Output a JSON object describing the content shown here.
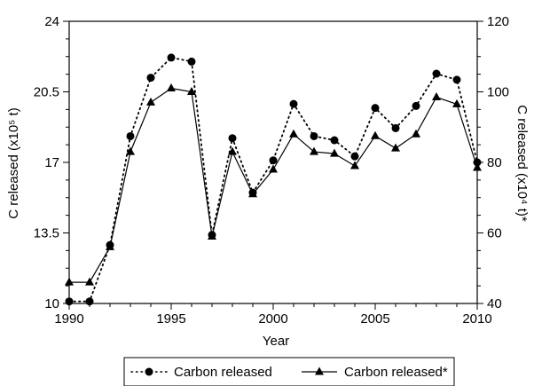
{
  "chart_data": {
    "type": "line",
    "xlabel": "Year",
    "ylabel_left": "C released (x10⁵ t)",
    "ylabel_right": "C released (x10⁴ t)*",
    "xlim": [
      1990,
      2010
    ],
    "ylim_left": [
      10,
      24
    ],
    "ylim_right": [
      40,
      120
    ],
    "x_ticks": [
      "1990",
      "1995",
      "2000",
      "2005",
      "2010"
    ],
    "x_tick_values": [
      1990,
      1995,
      2000,
      2005,
      2010
    ],
    "y_left_ticks": [
      "10",
      "13.5",
      "17",
      "20.5",
      "24"
    ],
    "y_left_tick_values": [
      10,
      13.5,
      17,
      20.5,
      24
    ],
    "y_right_ticks": [
      "40",
      "60",
      "80",
      "100",
      "120"
    ],
    "y_right_tick_values": [
      40,
      60,
      80,
      100,
      120
    ],
    "grid": false,
    "legend_position": "bottom",
    "colors": {
      "line": "#000000",
      "background": "#ffffff"
    },
    "x": [
      1990,
      1991,
      1992,
      1993,
      1994,
      1995,
      1996,
      1997,
      1998,
      1999,
      2000,
      2001,
      2002,
      2003,
      2004,
      2005,
      2006,
      2007,
      2008,
      2009,
      2010
    ],
    "series": [
      {
        "name": "Carbon released",
        "axis": "left",
        "marker": "circle",
        "line_style": "dotted",
        "values": [
          10.1,
          10.1,
          12.9,
          18.3,
          21.2,
          22.2,
          22.0,
          13.4,
          18.2,
          15.5,
          17.1,
          19.9,
          18.3,
          18.1,
          17.3,
          19.7,
          18.7,
          19.8,
          21.4,
          21.1,
          17.0
        ]
      },
      {
        "name": "Carbon released*",
        "axis": "right",
        "marker": "triangle",
        "line_style": "solid",
        "values": [
          46,
          46,
          56,
          83,
          97,
          101,
          100,
          59,
          83,
          71,
          78,
          88,
          83,
          82.5,
          79,
          87.5,
          84,
          88,
          98.5,
          96.5,
          78.5
        ]
      }
    ]
  }
}
